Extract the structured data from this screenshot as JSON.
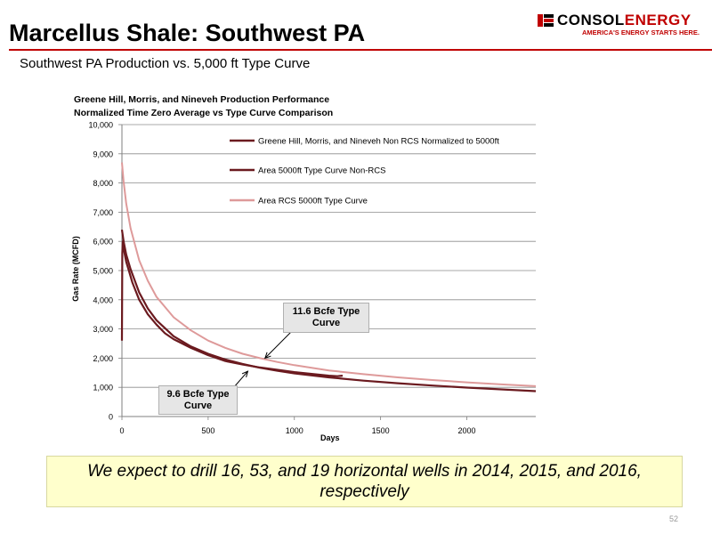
{
  "slide": {
    "title": "Marcellus Shale: Southwest PA",
    "subtitle": "Southwest PA Production vs. 5,000 ft Type Curve",
    "page_number": "52"
  },
  "logo": {
    "name_part1": "CONSOL",
    "name_part2": "ENERGY",
    "tagline": "AMERICA'S ENERGY STARTS HERE."
  },
  "banner": {
    "text": "We expect to drill 16, 53, and 19 horizontal wells in 2014, 2015, and 2016, respectively"
  },
  "colors": {
    "accent": "#c00000",
    "series_dark": "#6b1a1f",
    "series_light": "#de9a9a",
    "banner_bg": "#ffffcc"
  },
  "chart_data": {
    "type": "line",
    "title": "Greene Hill, Morris, and Nineveh Production Performance",
    "subtitle": "Normalized Time Zero Average vs Type Curve Comparison",
    "xlabel": "Days",
    "ylabel": "Gas Rate (MCFD)",
    "xlim": [
      0,
      2400
    ],
    "ylim": [
      0,
      10000
    ],
    "xticks": [
      0,
      500,
      1000,
      1500,
      2000
    ],
    "yticks": [
      0,
      1000,
      2000,
      3000,
      4000,
      5000,
      6000,
      7000,
      8000,
      9000,
      10000
    ],
    "ytick_labels": [
      "0",
      "1,000",
      "2,000",
      "3,000",
      "4,000",
      "5,000",
      "6,000",
      "7,000",
      "8,000",
      "9,000",
      "10,000"
    ],
    "grid": "horizontal",
    "legend_position": "top-right",
    "series": [
      {
        "name": "Greene Hill, Morris, and Nineveh Non RCS Normalized to 5000ft",
        "color": "#6b1a1f",
        "x": [
          0,
          2,
          5,
          10,
          15,
          25,
          40,
          60,
          80,
          100,
          150,
          200,
          250,
          300,
          400,
          500,
          600,
          700,
          800,
          900,
          1000,
          1100,
          1200,
          1250,
          1280
        ],
        "y": [
          2600,
          5600,
          6000,
          5800,
          5600,
          5300,
          5000,
          4600,
          4300,
          4000,
          3500,
          3150,
          2850,
          2650,
          2350,
          2100,
          1900,
          1780,
          1680,
          1600,
          1520,
          1460,
          1400,
          1380,
          1400
        ]
      },
      {
        "name": "Area 5000ft Type Curve Non-RCS",
        "color": "#6b1a1f",
        "x": [
          0,
          10,
          25,
          50,
          100,
          150,
          200,
          300,
          400,
          500,
          600,
          700,
          800,
          900,
          1000,
          1200,
          1400,
          1600,
          1800,
          2000,
          2200,
          2400
        ],
        "y": [
          6400,
          6000,
          5550,
          5050,
          4250,
          3700,
          3300,
          2750,
          2400,
          2150,
          1950,
          1800,
          1670,
          1570,
          1480,
          1340,
          1230,
          1140,
          1060,
          990,
          930,
          870
        ]
      },
      {
        "name": "Area RCS 5000ft Type Curve",
        "color": "#de9a9a",
        "x": [
          0,
          10,
          25,
          50,
          100,
          150,
          200,
          300,
          400,
          500,
          600,
          700,
          800,
          900,
          1000,
          1200,
          1400,
          1600,
          1800,
          2000,
          2200,
          2400
        ],
        "y": [
          8700,
          8050,
          7300,
          6450,
          5350,
          4650,
          4100,
          3400,
          2950,
          2600,
          2350,
          2150,
          2000,
          1870,
          1760,
          1580,
          1450,
          1340,
          1250,
          1170,
          1100,
          1040
        ]
      }
    ],
    "annotations": [
      {
        "text": "11.6 Bcfe Type Curve",
        "x": 830,
        "y": 2000
      },
      {
        "text": "9.6 Bcfe Type Curve",
        "x": 730,
        "y": 1550
      }
    ]
  }
}
